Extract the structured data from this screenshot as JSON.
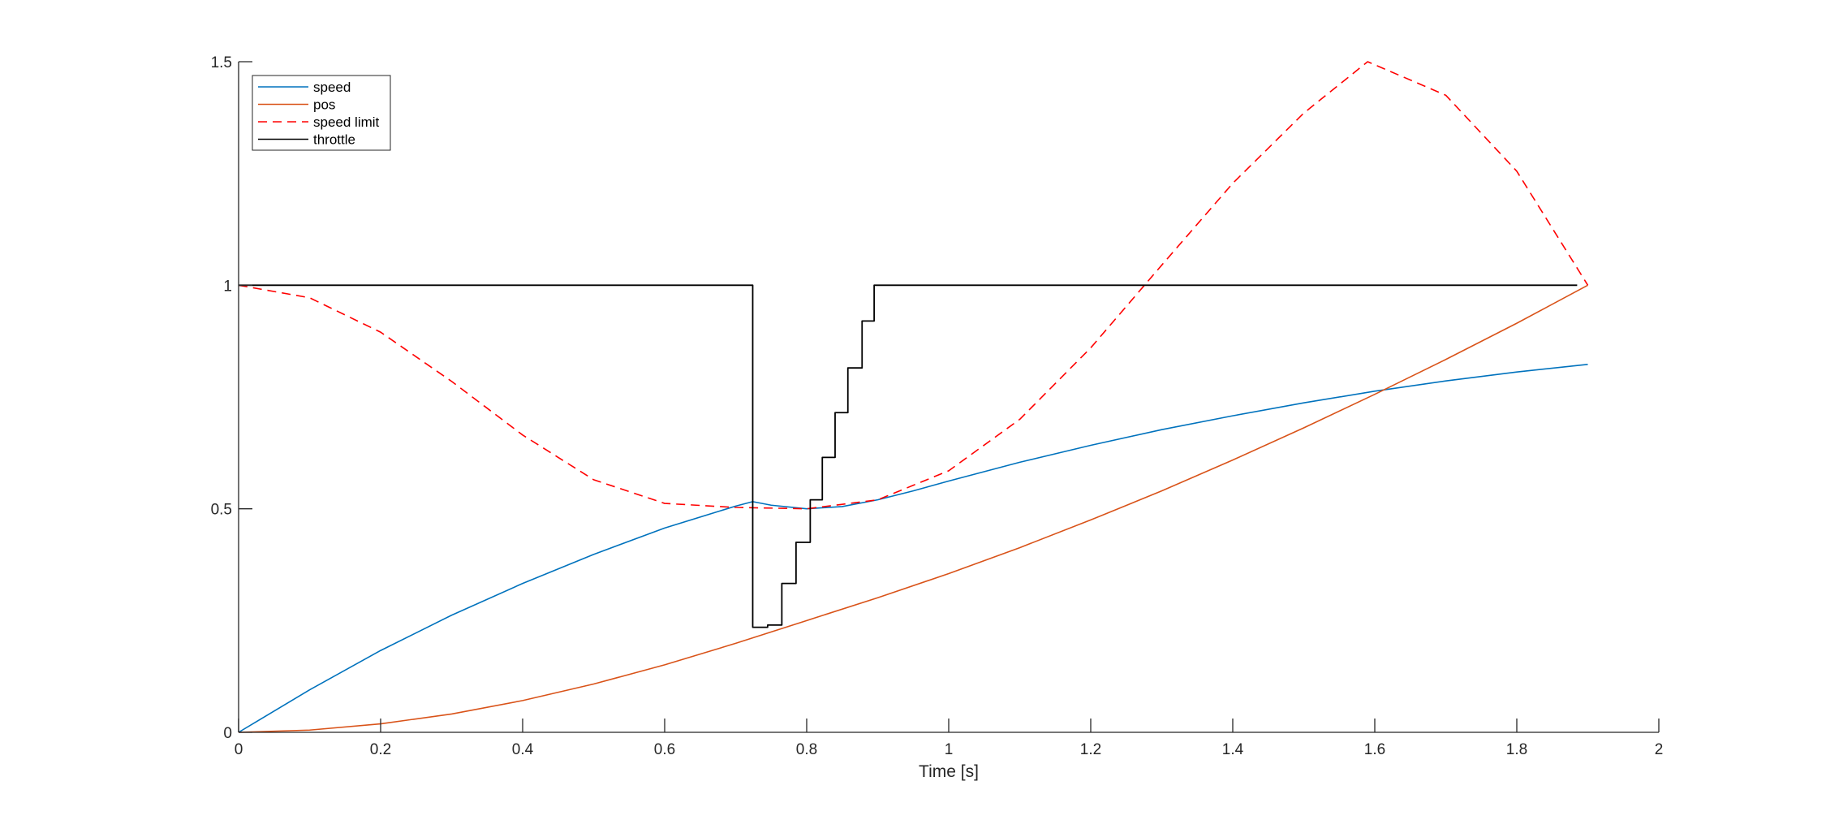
{
  "chart_data": {
    "type": "line",
    "title": "",
    "xlabel": "Time [s]",
    "ylabel": "",
    "xlim": [
      0,
      2
    ],
    "ylim": [
      0,
      1.5
    ],
    "xticks": [
      0,
      0.2,
      0.4,
      0.6,
      0.8,
      1,
      1.2,
      1.4,
      1.6,
      1.8,
      2
    ],
    "yticks": [
      0,
      0.5,
      1,
      1.5
    ],
    "xtick_labels": [
      "0",
      "0.2",
      "0.4",
      "0.6",
      "0.8",
      "1",
      "1.2",
      "1.4",
      "1.6",
      "1.8",
      "2"
    ],
    "ytick_labels": [
      "0",
      "0.5",
      "1",
      "1.5"
    ],
    "grid": false,
    "legend_position": "top-left",
    "series": [
      {
        "name": "speed",
        "color": "#0072BD",
        "style": "solid",
        "x": [
          0,
          0.1,
          0.2,
          0.3,
          0.4,
          0.5,
          0.6,
          0.7,
          0.724,
          0.75,
          0.8,
          0.85,
          0.9,
          0.95,
          1.0,
          1.1,
          1.2,
          1.3,
          1.4,
          1.5,
          1.6,
          1.7,
          1.8,
          1.9
        ],
        "y": [
          0,
          0.095,
          0.183,
          0.262,
          0.333,
          0.398,
          0.457,
          0.506,
          0.516,
          0.508,
          0.5,
          0.505,
          0.52,
          0.54,
          0.562,
          0.604,
          0.642,
          0.677,
          0.708,
          0.737,
          0.763,
          0.786,
          0.806,
          0.823
        ]
      },
      {
        "name": "pos",
        "color": "#D95319",
        "style": "solid",
        "x": [
          0,
          0.1,
          0.2,
          0.3,
          0.4,
          0.5,
          0.6,
          0.7,
          0.8,
          0.9,
          1.0,
          1.1,
          1.2,
          1.3,
          1.4,
          1.5,
          1.6,
          1.7,
          1.8,
          1.9
        ],
        "y": [
          0,
          0.005,
          0.019,
          0.041,
          0.071,
          0.108,
          0.151,
          0.199,
          0.25,
          0.301,
          0.355,
          0.413,
          0.475,
          0.54,
          0.609,
          0.681,
          0.756,
          0.834,
          0.915,
          1.0
        ]
      },
      {
        "name": "speed limit",
        "color": "#FF0000",
        "style": "dashed",
        "x": [
          0,
          0.1,
          0.2,
          0.3,
          0.4,
          0.5,
          0.6,
          0.7,
          0.8,
          0.9,
          1.0,
          1.1,
          1.2,
          1.3,
          1.4,
          1.5,
          1.59,
          1.7,
          1.8,
          1.9
        ],
        "y": [
          1.0,
          0.972,
          0.895,
          0.785,
          0.665,
          0.565,
          0.512,
          0.503,
          0.5,
          0.52,
          0.585,
          0.7,
          0.86,
          1.045,
          1.228,
          1.385,
          1.5,
          1.425,
          1.255,
          1.0
        ]
      },
      {
        "name": "throttle",
        "color": "#000000",
        "style": "solid",
        "step": true,
        "x": [
          0,
          0.724,
          0.724,
          0.745,
          0.745,
          0.765,
          0.765,
          0.785,
          0.785,
          0.805,
          0.805,
          0.822,
          0.822,
          0.84,
          0.84,
          0.858,
          0.858,
          0.878,
          0.878,
          0.895,
          0.895,
          1.885
        ],
        "y": [
          1,
          1,
          0.235,
          0.235,
          0.24,
          0.24,
          0.333,
          0.333,
          0.425,
          0.425,
          0.52,
          0.52,
          0.615,
          0.615,
          0.715,
          0.715,
          0.815,
          0.815,
          0.92,
          0.92,
          1,
          1
        ]
      }
    ]
  }
}
